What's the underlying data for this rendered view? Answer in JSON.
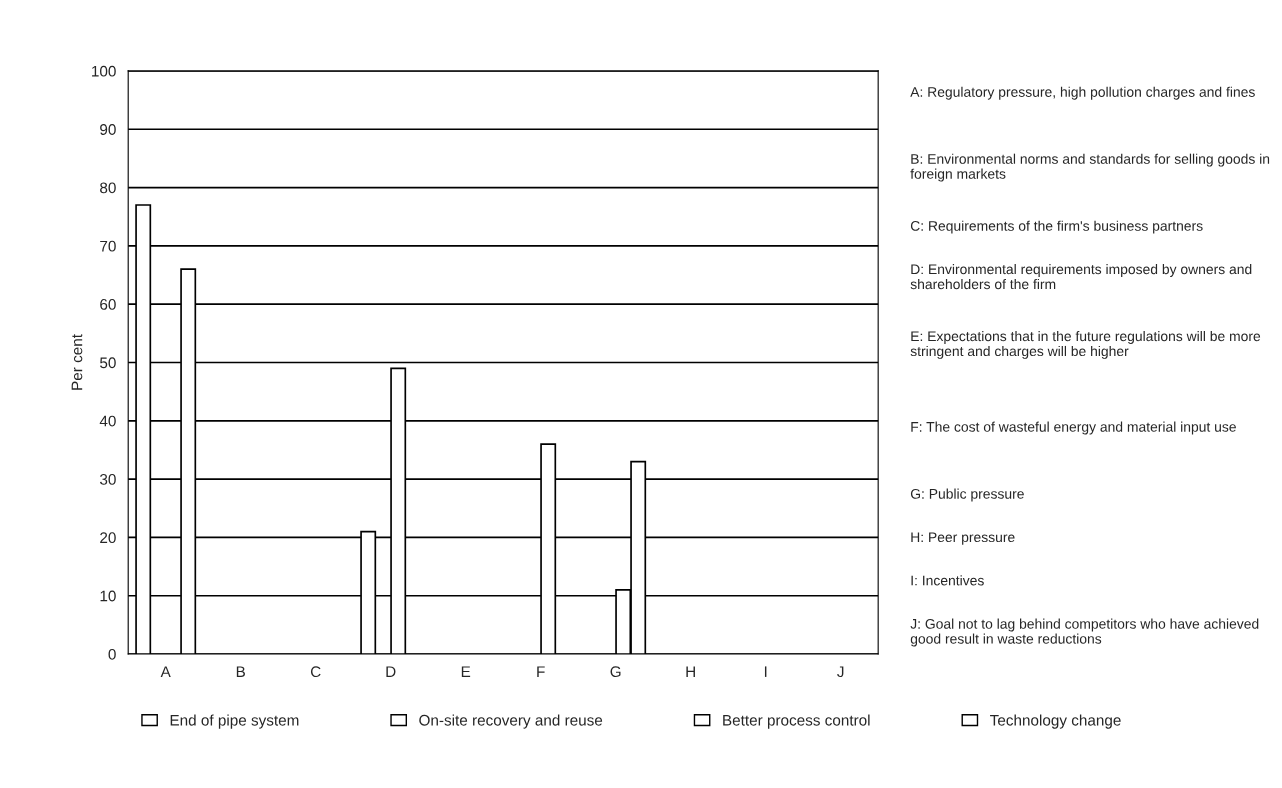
{
  "chart_data": {
    "type": "bar",
    "ylabel": "Per cent",
    "categories": [
      "A",
      "B",
      "C",
      "D",
      "E",
      "F",
      "G",
      "H",
      "I",
      "J"
    ],
    "series": [
      {
        "name": "End of pipe system",
        "color": "#ffffff",
        "values": [
          77,
          0,
          0,
          21,
          0,
          0,
          0,
          0,
          0,
          0
        ]
      },
      {
        "name": "On-site recovery and reuse",
        "color": "#ffffff",
        "values": [
          0,
          0,
          0,
          0,
          0,
          0,
          0,
          0,
          0,
          0
        ]
      },
      {
        "name": "Better process control",
        "color": "#ffffff",
        "values": [
          0,
          0,
          0,
          49,
          0,
          36,
          11,
          0,
          0,
          0
        ]
      },
      {
        "name": "Technology change",
        "color": "#ffffff",
        "values": [
          66,
          0,
          0,
          0,
          0,
          0,
          33,
          0,
          0,
          0
        ]
      }
    ],
    "ylim": [
      0,
      100
    ],
    "yticks": [
      0,
      10,
      20,
      30,
      40,
      50,
      60,
      70,
      80,
      90,
      100
    ],
    "grid": "y",
    "legend": "bottom",
    "annotations": [
      "A: Regulatory pressure, high pollution charges and fines",
      "B: Environmental norms and standards for selling goods in foreign markets",
      "C: Requirements of the firm's business partners",
      "D: Environmental requirements imposed by owners and shareholders of the firm",
      "E: Expectations that in the future regulations will be more stringent and charges will be higher",
      "F: The cost of wasteful energy and material input use",
      "G: Public pressure",
      "H: Peer pressure",
      "I: Incentives",
      "J: Goal not to lag behind competitors who have achieved good result in waste reductions"
    ]
  }
}
